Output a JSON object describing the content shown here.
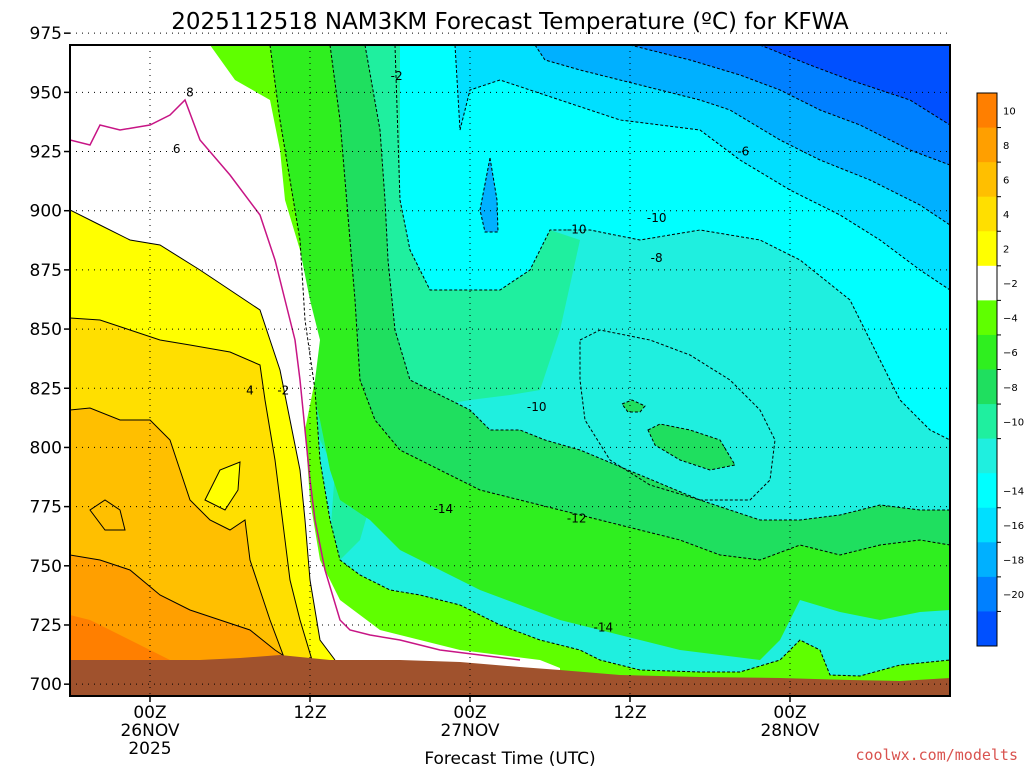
{
  "chart_data": {
    "type": "heatmap",
    "title": "2025112518 NAM3KM Forecast Temperature (ºC) for KFWA",
    "xlabel": "Forecast Time (UTC)",
    "ylabel": "",
    "y_axis": {
      "scale": "pressure_hPa",
      "range": [
        970,
        695
      ],
      "ticks": [
        700,
        725,
        750,
        775,
        800,
        825,
        850,
        875,
        900,
        925,
        950,
        975
      ]
    },
    "x_axis": {
      "range_hours": [
        -6,
        60
      ],
      "ticks": [
        {
          "hour": 0,
          "lines": [
            "00Z",
            "26NOV",
            "2025"
          ]
        },
        {
          "hour": 12,
          "lines": [
            "12Z"
          ]
        },
        {
          "hour": 24,
          "lines": [
            "00Z",
            "27NOV"
          ]
        },
        {
          "hour": 36,
          "lines": [
            "12Z"
          ]
        },
        {
          "hour": 48,
          "lines": [
            "00Z",
            "28NOV"
          ]
        }
      ]
    },
    "colorbar": {
      "ticks": [
        10,
        8,
        6,
        4,
        2,
        -2,
        -4,
        -6,
        -8,
        -10,
        -14,
        -16,
        -18,
        -20
      ],
      "levels": [
        {
          "from": 10,
          "to": 12,
          "color": "#ff7f00"
        },
        {
          "from": 8,
          "to": 10,
          "color": "#ff9f00"
        },
        {
          "from": 6,
          "to": 8,
          "color": "#ffbf00"
        },
        {
          "from": 4,
          "to": 6,
          "color": "#ffdf00"
        },
        {
          "from": 2,
          "to": 4,
          "color": "#ffff00"
        },
        {
          "from": -2,
          "to": 2,
          "color": "#ffffff"
        },
        {
          "from": -4,
          "to": -2,
          "color": "#5fff00"
        },
        {
          "from": -6,
          "to": -4,
          "color": "#2fef1f"
        },
        {
          "from": -8,
          "to": -6,
          "color": "#1fdf5f"
        },
        {
          "from": -10,
          "to": -8,
          "color": "#1fef9f"
        },
        {
          "from": -12,
          "to": -10,
          "color": "#1fefdf"
        },
        {
          "from": -14,
          "to": -12,
          "color": "#00ffff"
        },
        {
          "from": -16,
          "to": -14,
          "color": "#00dfff"
        },
        {
          "from": -18,
          "to": -16,
          "color": "#00b0ff"
        },
        {
          "from": -20,
          "to": -18,
          "color": "#0080ff"
        },
        {
          "from": -22,
          "to": -20,
          "color": "#0050ff"
        }
      ]
    },
    "contour_labels": [
      {
        "text": "4",
        "hour": 7.5,
        "p": 824
      },
      {
        "text": "-2",
        "hour": 10,
        "p": 824
      },
      {
        "text": "6",
        "hour": 2,
        "p": 926
      },
      {
        "text": "8",
        "hour": 3,
        "p": 950
      },
      {
        "text": "-14",
        "hour": 34,
        "p": 724
      },
      {
        "text": "-14",
        "hour": 22,
        "p": 774
      },
      {
        "text": "-12",
        "hour": 32,
        "p": 770
      },
      {
        "text": "-10",
        "hour": 29,
        "p": 817
      },
      {
        "text": "-8",
        "hour": 38,
        "p": 880
      },
      {
        "text": "-10",
        "hour": 32,
        "p": 892
      },
      {
        "text": "-10",
        "hour": 38,
        "p": 897
      },
      {
        "text": "-6",
        "hour": 44.5,
        "p": 925
      },
      {
        "text": "-2",
        "hour": 18.5,
        "p": 957
      }
    ],
    "terrain_color": "#a0522d"
  },
  "credit": "coolwx.com/modelts"
}
